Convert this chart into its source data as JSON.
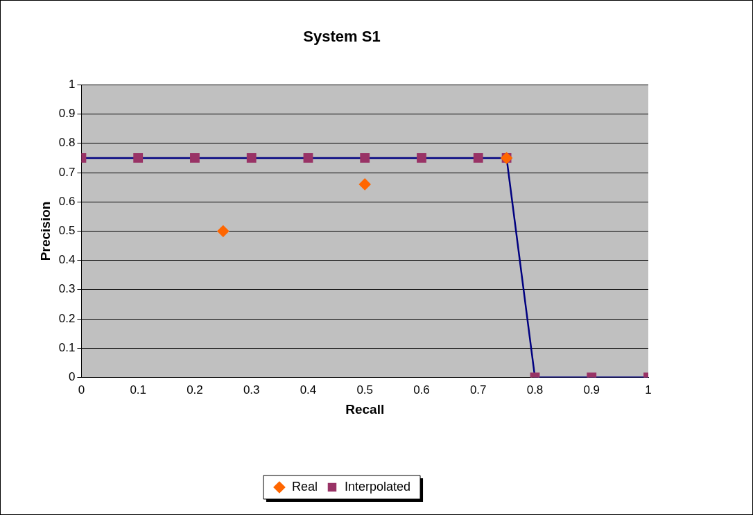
{
  "chart_data": {
    "type": "line",
    "title": "System S1",
    "xlabel": "Recall",
    "ylabel": "Precision",
    "xlim": [
      0,
      1
    ],
    "xticks": [
      0,
      0.1,
      0.2,
      0.3,
      0.4,
      0.5,
      0.6,
      0.7,
      0.8,
      0.9,
      1
    ],
    "ylim": [
      0,
      1
    ],
    "yticks": [
      0,
      0.1,
      0.2,
      0.3,
      0.4,
      0.5,
      0.6,
      0.7,
      0.8,
      0.9,
      1
    ],
    "grid": "y",
    "legend": "bottom",
    "series": [
      {
        "name": "Interpolated",
        "type": "line",
        "color": "#000080",
        "colors": [
          "#993366",
          "#993366",
          "#993366",
          "#993366",
          "#993366",
          "#993366",
          "#993366",
          "#993366",
          "#993366",
          "#993366",
          "#993366",
          "#993366"
        ],
        "marker": "square",
        "x": [
          0,
          0.1,
          0.2,
          0.3,
          0.4,
          0.5,
          0.6,
          0.7,
          0.75,
          0.8,
          0.9,
          1
        ],
        "values": [
          0.75,
          0.75,
          0.75,
          0.75,
          0.75,
          0.75,
          0.75,
          0.75,
          0.75,
          0,
          0,
          0
        ]
      },
      {
        "name": "Real",
        "type": "scatter",
        "color": "#ff6600",
        "marker": "diamond",
        "x": [
          0.25,
          0.5,
          0.75
        ],
        "values": [
          0.5,
          0.66,
          0.75
        ]
      }
    ]
  }
}
